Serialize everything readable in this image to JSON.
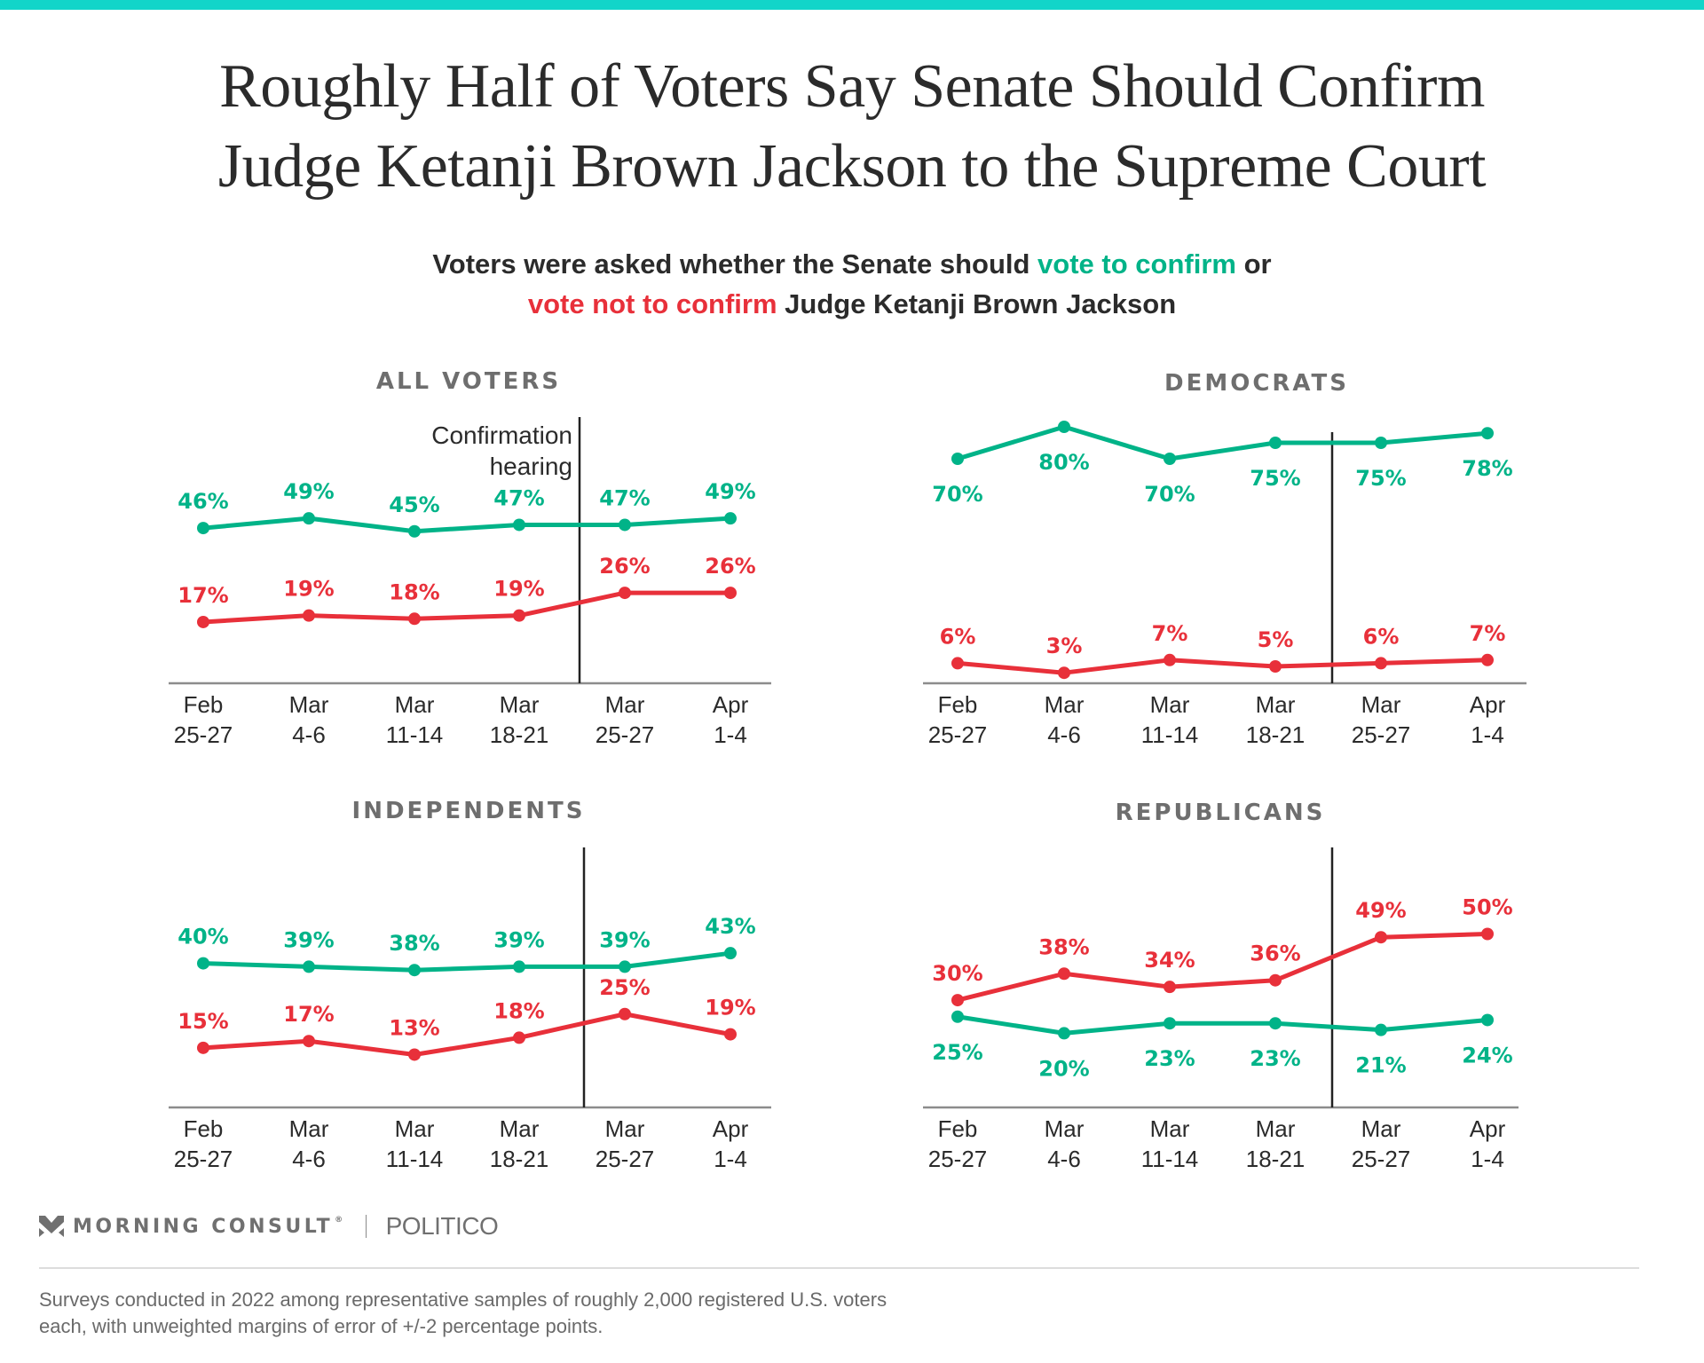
{
  "header": {
    "title_line1": "Roughly Half of Voters Say Senate Should Confirm",
    "title_line2": "Judge Ketanji Brown Jackson to the Supreme Court",
    "subtitle": {
      "line1_pre": "Voters were asked whether the Senate should ",
      "line1_green": "vote to confirm",
      "line1_post": " or",
      "line2_red": "vote not to confirm",
      "line2_post": " Judge Ketanji Brown Jackson"
    }
  },
  "colors": {
    "confirm": "#00b388",
    "not_confirm": "#e8303a",
    "top_bar": "#12d5c9",
    "axis": "#8c8c8c",
    "marker_line": "#222222",
    "tick_text": "#2b2b2b"
  },
  "chart_data": [
    {
      "type": "line",
      "title": "ALL VOTERS",
      "categories": [
        [
          "Feb",
          "25-27"
        ],
        [
          "Mar",
          "4-6"
        ],
        [
          "Mar",
          "11-14"
        ],
        [
          "Mar",
          "18-21"
        ],
        [
          "Mar",
          "25-27"
        ],
        [
          "Apr",
          "1-4"
        ]
      ],
      "series": [
        {
          "name": "vote to confirm",
          "values": [
            46,
            49,
            45,
            47,
            47,
            49
          ],
          "labels": [
            "46%",
            "49%",
            "45%",
            "47%",
            "47%",
            "49%"
          ],
          "label_position": "above"
        },
        {
          "name": "vote not to confirm",
          "values": [
            17,
            19,
            18,
            19,
            26,
            26
          ],
          "labels": [
            "17%",
            "19%",
            "18%",
            "19%",
            "26%",
            "26%"
          ],
          "label_position": "above"
        }
      ],
      "annotation": {
        "text_line1": "Confirmation",
        "text_line2": "hearing",
        "between": [
          "Mar 18-21",
          "Mar 25-27"
        ]
      },
      "xlabel": "",
      "ylabel": "",
      "grid": false
    },
    {
      "type": "line",
      "title": "DEMOCRATS",
      "categories": [
        [
          "Feb",
          "25-27"
        ],
        [
          "Mar",
          "4-6"
        ],
        [
          "Mar",
          "11-14"
        ],
        [
          "Mar",
          "18-21"
        ],
        [
          "Mar",
          "25-27"
        ],
        [
          "Apr",
          "1-4"
        ]
      ],
      "series": [
        {
          "name": "vote to confirm",
          "values": [
            70,
            80,
            70,
            75,
            75,
            78
          ],
          "labels": [
            "70%",
            "80%",
            "70%",
            "75%",
            "75%",
            "78%"
          ],
          "label_position": "below"
        },
        {
          "name": "vote not to confirm",
          "values": [
            6,
            3,
            7,
            5,
            6,
            7
          ],
          "labels": [
            "6%",
            "3%",
            "7%",
            "5%",
            "6%",
            "7%"
          ],
          "label_position": "above"
        }
      ],
      "annotation": {
        "between": [
          "Mar 18-21",
          "Mar 25-27"
        ]
      },
      "xlabel": "",
      "ylabel": "",
      "grid": false
    },
    {
      "type": "line",
      "title": "INDEPENDENTS",
      "categories": [
        [
          "Feb",
          "25-27"
        ],
        [
          "Mar",
          "4-6"
        ],
        [
          "Mar",
          "11-14"
        ],
        [
          "Mar",
          "18-21"
        ],
        [
          "Mar",
          "25-27"
        ],
        [
          "Apr",
          "1-4"
        ]
      ],
      "series": [
        {
          "name": "vote to confirm",
          "values": [
            40,
            39,
            38,
            39,
            39,
            43
          ],
          "labels": [
            "40%",
            "39%",
            "38%",
            "39%",
            "39%",
            "43%"
          ],
          "label_position": "above"
        },
        {
          "name": "vote not to confirm",
          "values": [
            15,
            17,
            13,
            18,
            25,
            19
          ],
          "labels": [
            "15%",
            "17%",
            "13%",
            "18%",
            "25%",
            "19%"
          ],
          "label_position": "above"
        }
      ],
      "annotation": {
        "between": [
          "Mar 18-21",
          "Mar 25-27"
        ]
      },
      "xlabel": "",
      "ylabel": "",
      "grid": false
    },
    {
      "type": "line",
      "title": "REPUBLICANS",
      "categories": [
        [
          "Feb",
          "25-27"
        ],
        [
          "Mar",
          "4-6"
        ],
        [
          "Mar",
          "11-14"
        ],
        [
          "Mar",
          "18-21"
        ],
        [
          "Mar",
          "25-27"
        ],
        [
          "Apr",
          "1-4"
        ]
      ],
      "series": [
        {
          "name": "vote to confirm",
          "values": [
            25,
            20,
            23,
            23,
            21,
            24
          ],
          "labels": [
            "25%",
            "20%",
            "23%",
            "23%",
            "21%",
            "24%"
          ],
          "label_position": "below"
        },
        {
          "name": "vote not to confirm",
          "values": [
            30,
            38,
            34,
            36,
            49,
            50
          ],
          "labels": [
            "30%",
            "38%",
            "34%",
            "36%",
            "49%",
            "50%"
          ],
          "label_position": "above"
        }
      ],
      "annotation": {
        "between": [
          "Mar 18-21",
          "Mar 25-27"
        ]
      },
      "xlabel": "",
      "ylabel": "",
      "grid": false
    }
  ],
  "footer": {
    "logo_icon": "morning-consult-chevron-icon",
    "brand1": "MORNING CONSULT",
    "brand1_mark": "®",
    "brand2": "POLITICO",
    "note_line1": "Surveys conducted in 2022 among representative samples of roughly 2,000 registered U.S. voters",
    "note_line2": "each, with unweighted margins of error of +/-2 percentage points."
  }
}
